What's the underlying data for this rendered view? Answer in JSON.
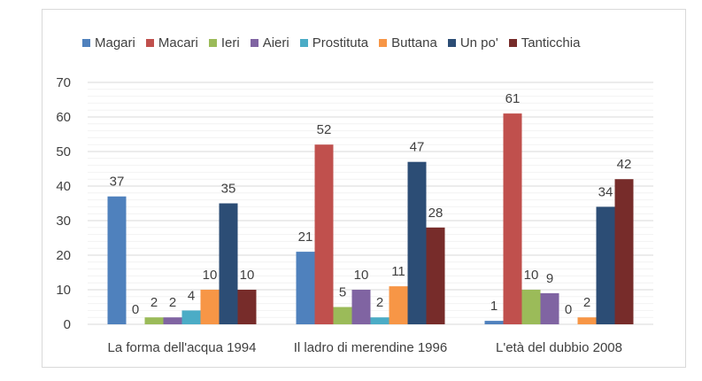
{
  "chart_data": {
    "type": "bar",
    "title": "",
    "xlabel": "",
    "ylabel": "",
    "ylim": [
      0,
      70
    ],
    "yticks": [
      0,
      10,
      20,
      30,
      40,
      50,
      60,
      70
    ],
    "grid": true,
    "legend_position": "top",
    "categories": [
      "La forma dell'acqua 1994",
      "Il ladro di merendine 1996",
      "L'età del dubbio 2008"
    ],
    "series": [
      {
        "name": "Magari",
        "color": "#4f81bd",
        "values": [
          37,
          21,
          1
        ]
      },
      {
        "name": "Macari",
        "color": "#c0504d",
        "values": [
          0,
          52,
          61
        ]
      },
      {
        "name": "Ieri",
        "color": "#9bbb59",
        "values": [
          2,
          5,
          10
        ]
      },
      {
        "name": "Aieri",
        "color": "#8064a2",
        "values": [
          2,
          10,
          9
        ]
      },
      {
        "name": "Prostituta",
        "color": "#4bacc6",
        "values": [
          4,
          2,
          0
        ]
      },
      {
        "name": "Buttana",
        "color": "#f79646",
        "values": [
          10,
          11,
          2
        ]
      },
      {
        "name": "Un po'",
        "color": "#2c4d75",
        "values": [
          35,
          47,
          34
        ]
      },
      {
        "name": "Tanticchia",
        "color": "#772c2a",
        "values": [
          10,
          28,
          42
        ]
      }
    ]
  }
}
